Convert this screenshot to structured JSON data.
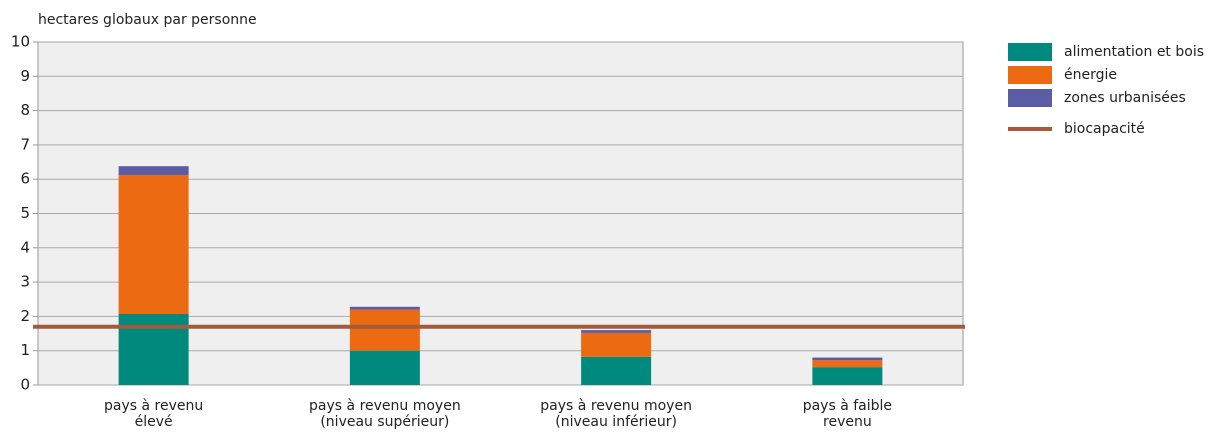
{
  "chart_data": {
    "type": "stacked_bar",
    "y_axis_label": "hectares globaux par personne",
    "categories": [
      "pays à revenu\nélevé",
      "pays à revenu moyen\n(niveau supérieur)",
      "pays à revenu moyen\n(niveau inférieur)",
      "pays à faible\nrevenu"
    ],
    "series": [
      {
        "name": "alimentation et bois",
        "color": "#00897d",
        "values": [
          2.07,
          1.0,
          0.82,
          0.52
        ]
      },
      {
        "name": "énergie",
        "color": "#ec6a12",
        "values": [
          4.05,
          1.2,
          0.7,
          0.2
        ]
      },
      {
        "name": "zones urbanisées",
        "color": "#5c5ca5",
        "values": [
          0.26,
          0.08,
          0.08,
          0.08
        ]
      }
    ],
    "reference_line": {
      "name": "biocapacité",
      "value": 1.7,
      "color": "#a55a3c"
    },
    "ylim": [
      0,
      10
    ],
    "yticks": [
      0,
      1,
      2,
      3,
      4,
      5,
      6,
      7,
      8,
      9,
      10
    ],
    "grid": true,
    "legend": "right"
  }
}
